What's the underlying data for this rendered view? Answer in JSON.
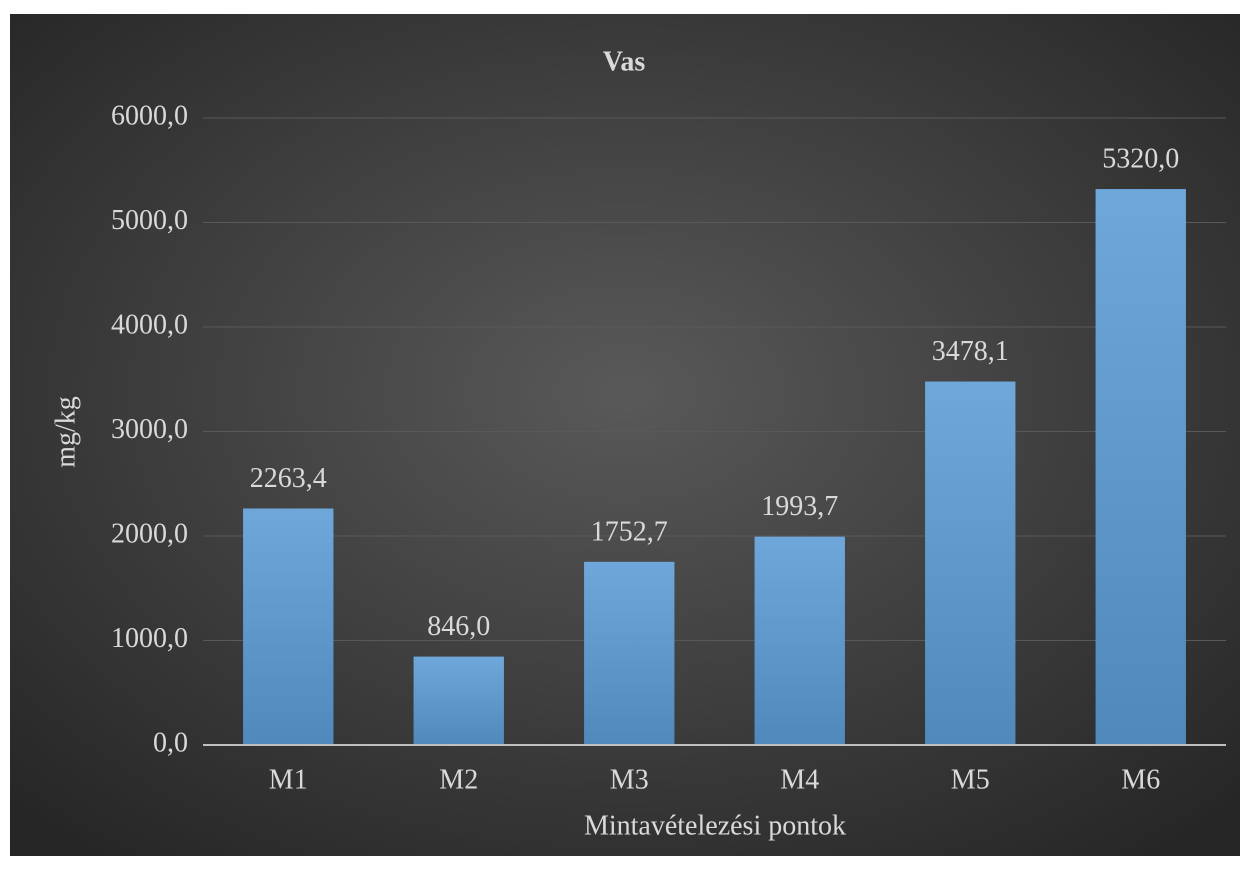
{
  "chart_data": {
    "type": "bar",
    "title": "Vas",
    "x_label": "Mintavételezési pontok",
    "y_label": "mg/kg",
    "categories": [
      "M1",
      "M2",
      "M3",
      "M4",
      "M5",
      "M6"
    ],
    "values": [
      2263.4,
      846.0,
      1752.7,
      1993.7,
      3478.1,
      5320.0
    ],
    "value_labels": [
      "2263,4",
      "846,0",
      "1752,7",
      "1993,7",
      "3478,1",
      "5320,0"
    ],
    "color": "#5b9bd5",
    "ylim": [
      0,
      6000
    ],
    "yticks": [
      {
        "value": 0,
        "label": "0,0"
      },
      {
        "value": 1000,
        "label": "1000,0"
      },
      {
        "value": 2000,
        "label": "2000,0"
      },
      {
        "value": 3000,
        "label": "3000,0"
      },
      {
        "value": 4000,
        "label": "4000,0"
      },
      {
        "value": 5000,
        "label": "5000,0"
      },
      {
        "value": 6000,
        "label": "6000,0"
      }
    ],
    "grid": true
  }
}
